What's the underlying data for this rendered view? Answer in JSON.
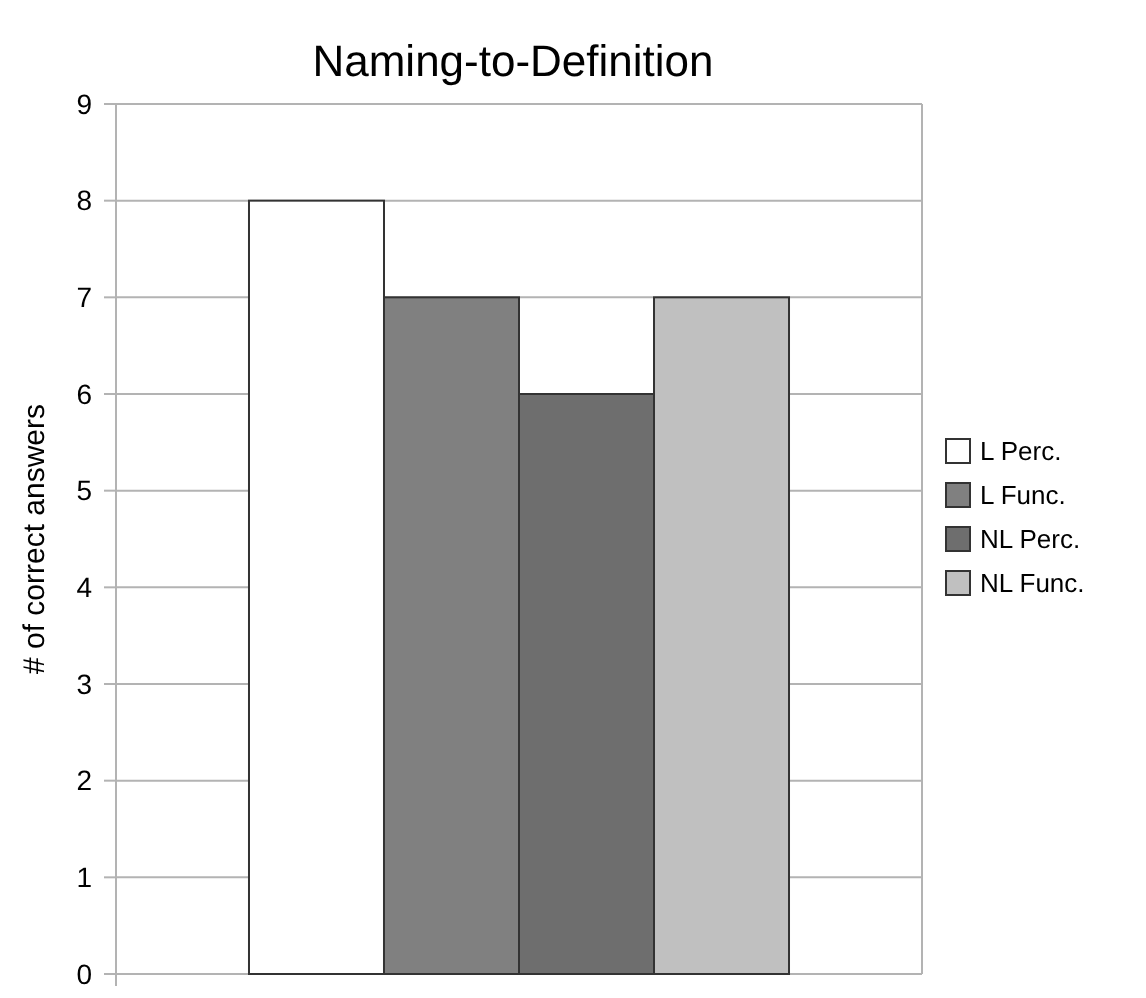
{
  "chart_data": {
    "type": "bar",
    "title": "Naming-to-Definition",
    "ylabel": "# of correct answers",
    "categories": [
      null
    ],
    "series": [
      {
        "name": "L Perc.",
        "color": "#ffffff",
        "values": [
          8
        ]
      },
      {
        "name": "L Func.",
        "color": "#808080",
        "values": [
          7
        ]
      },
      {
        "name": "NL Perc.",
        "color": "#6e6e6e",
        "values": [
          6
        ]
      },
      {
        "name": "NL Func.",
        "color": "#c0c0c0",
        "values": [
          7
        ]
      }
    ],
    "ylim": [
      0,
      9
    ],
    "yticks": [
      0,
      1,
      2,
      3,
      4,
      5,
      6,
      7,
      8,
      9
    ],
    "grid": "y",
    "legend": "right"
  }
}
